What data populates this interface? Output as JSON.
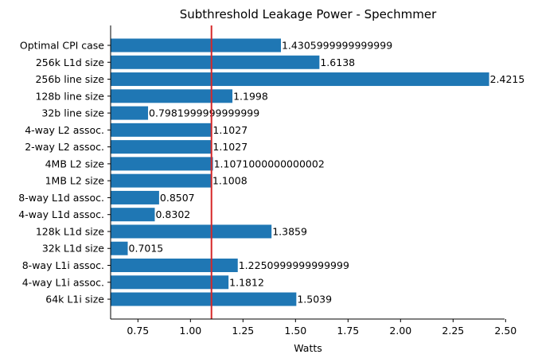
{
  "chart_data": {
    "type": "bar",
    "orientation": "horizontal",
    "title": "Subthreshold Leakage Power - Spechmmer",
    "xlabel": "Watts",
    "ylabel": "",
    "xlim": [
      0.62,
      2.495
    ],
    "xticks": [
      "0.75",
      "1.00",
      "1.25",
      "1.50",
      "1.75",
      "2.00",
      "2.25",
      "2.50"
    ],
    "xtick_values": [
      0.75,
      1.0,
      1.25,
      1.5,
      1.75,
      2.0,
      2.25,
      2.5
    ],
    "grid": false,
    "bar_color": "#1f77b4",
    "reference_line": {
      "value": 1.1,
      "color": "#d62728"
    },
    "categories": [
      "Optimal CPI case",
      "256k L1d size",
      "256b line size",
      "128b line size",
      "32b line size",
      "4-way L2 assoc.",
      "2-way L2 assoc.",
      "4MB L2 size",
      "1MB L2 size",
      "8-way L1d assoc.",
      "4-way L1d assoc.",
      "128k L1d size",
      "32k L1d size",
      "8-way L1i assoc.",
      "4-way L1i assoc.",
      "64k L1i size"
    ],
    "values": [
      1.4305999999999999,
      1.6138,
      2.4215,
      1.1998,
      0.7981999999999999,
      1.1027,
      1.1027,
      1.1071000000000002,
      1.1008,
      0.8507,
      0.8302,
      1.3859,
      0.7015,
      1.2250999999999999,
      1.1812,
      1.5039
    ],
    "value_labels": [
      "1.4305999999999999",
      "1.6138",
      "2.4215",
      "1.1998",
      "0.7981999999999999",
      "1.1027",
      "1.1027",
      "1.1071000000000002",
      "1.1008",
      "0.8507",
      "0.8302",
      "1.3859",
      "0.7015",
      "1.2250999999999999",
      "1.1812",
      "1.5039"
    ]
  }
}
